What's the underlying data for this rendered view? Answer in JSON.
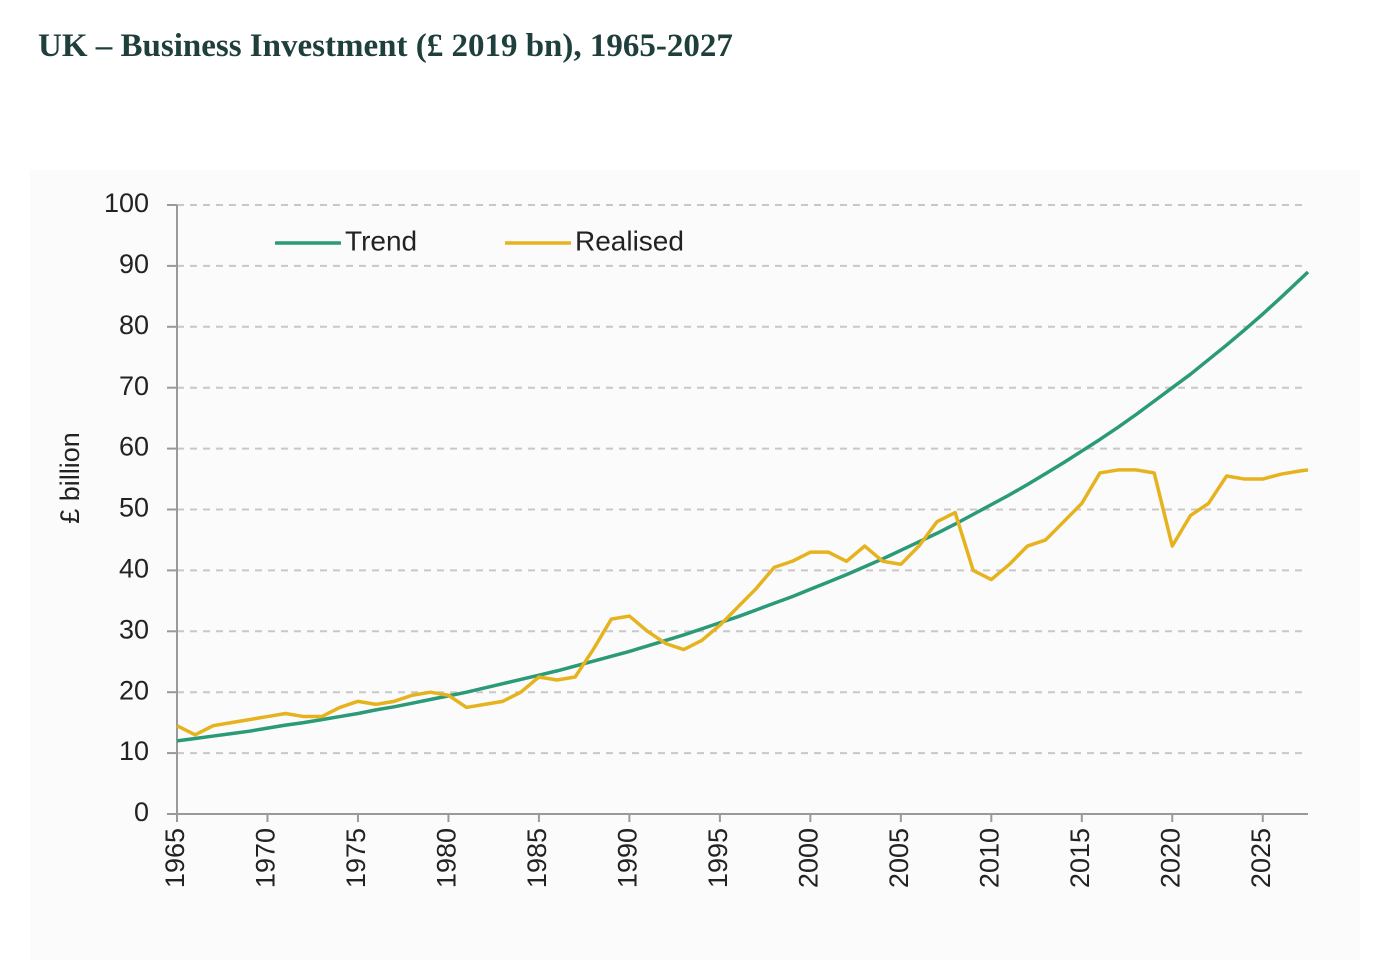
{
  "chart_data": {
    "type": "line",
    "title": "UK – Business Investment (£ 2019 bn), 1965-2027",
    "y_label": "£ billion",
    "x": [
      1965,
      1966,
      1967,
      1968,
      1969,
      1970,
      1971,
      1972,
      1973,
      1974,
      1975,
      1976,
      1977,
      1978,
      1979,
      1980,
      1981,
      1982,
      1983,
      1984,
      1985,
      1986,
      1987,
      1988,
      1989,
      1990,
      1991,
      1992,
      1993,
      1994,
      1995,
      1996,
      1997,
      1998,
      1999,
      2000,
      2001,
      2002,
      2003,
      2004,
      2005,
      2006,
      2007,
      2008,
      2009,
      2010,
      2011,
      2012,
      2013,
      2014,
      2015,
      2016,
      2017,
      2018,
      2019,
      2020,
      2021,
      2022,
      2023,
      2024,
      2025,
      2026,
      2027,
      2027.5
    ],
    "series": [
      {
        "name": "Trend",
        "color": "#2a9a78",
        "values": [
          12.0,
          12.4,
          12.8,
          13.2,
          13.6,
          14.1,
          14.6,
          15.0,
          15.5,
          16.0,
          16.5,
          17.1,
          17.6,
          18.2,
          18.8,
          19.4,
          20.0,
          20.7,
          21.4,
          22.1,
          22.8,
          23.5,
          24.3,
          25.1,
          25.9,
          26.7,
          27.6,
          28.5,
          29.4,
          30.4,
          31.4,
          32.4,
          33.5,
          34.6,
          35.7,
          36.9,
          38.1,
          39.3,
          40.6,
          41.9,
          43.3,
          44.7,
          46.1,
          47.6,
          49.2,
          50.8,
          52.4,
          54.1,
          55.9,
          57.7,
          59.6,
          61.5,
          63.5,
          65.6,
          67.8,
          70.0,
          72.2,
          74.6,
          77.0,
          79.5,
          82.1,
          84.8,
          87.6,
          89.0
        ]
      },
      {
        "name": "Realised",
        "color": "#e6b31e",
        "values": [
          14.5,
          13,
          14.5,
          15,
          15.5,
          16,
          16.5,
          16,
          16,
          17.5,
          18.5,
          18,
          18.5,
          19.5,
          20,
          19.5,
          17.5,
          18,
          18.5,
          20,
          22.5,
          22,
          22.5,
          27,
          32,
          32.5,
          30,
          28,
          27,
          28.5,
          31,
          34,
          37,
          40.5,
          41.5,
          43,
          43,
          41.5,
          44,
          41.5,
          41,
          44,
          48,
          49.5,
          40,
          38.5,
          41,
          44,
          45,
          48,
          51,
          56,
          56.5,
          56.5,
          56,
          44,
          49,
          51,
          55.5,
          55,
          55,
          55.8,
          56.3,
          56.5
        ]
      }
    ],
    "xlim": [
      1965,
      2027.5
    ],
    "xticks": [
      1965,
      1970,
      1975,
      1980,
      1985,
      1990,
      1995,
      2000,
      2005,
      2010,
      2015,
      2020,
      2025
    ],
    "ylim": [
      0,
      100
    ],
    "yticks": [
      0,
      10,
      20,
      30,
      40,
      50,
      60,
      70,
      80,
      90,
      100
    ],
    "grid": true,
    "legend": "upper left"
  }
}
